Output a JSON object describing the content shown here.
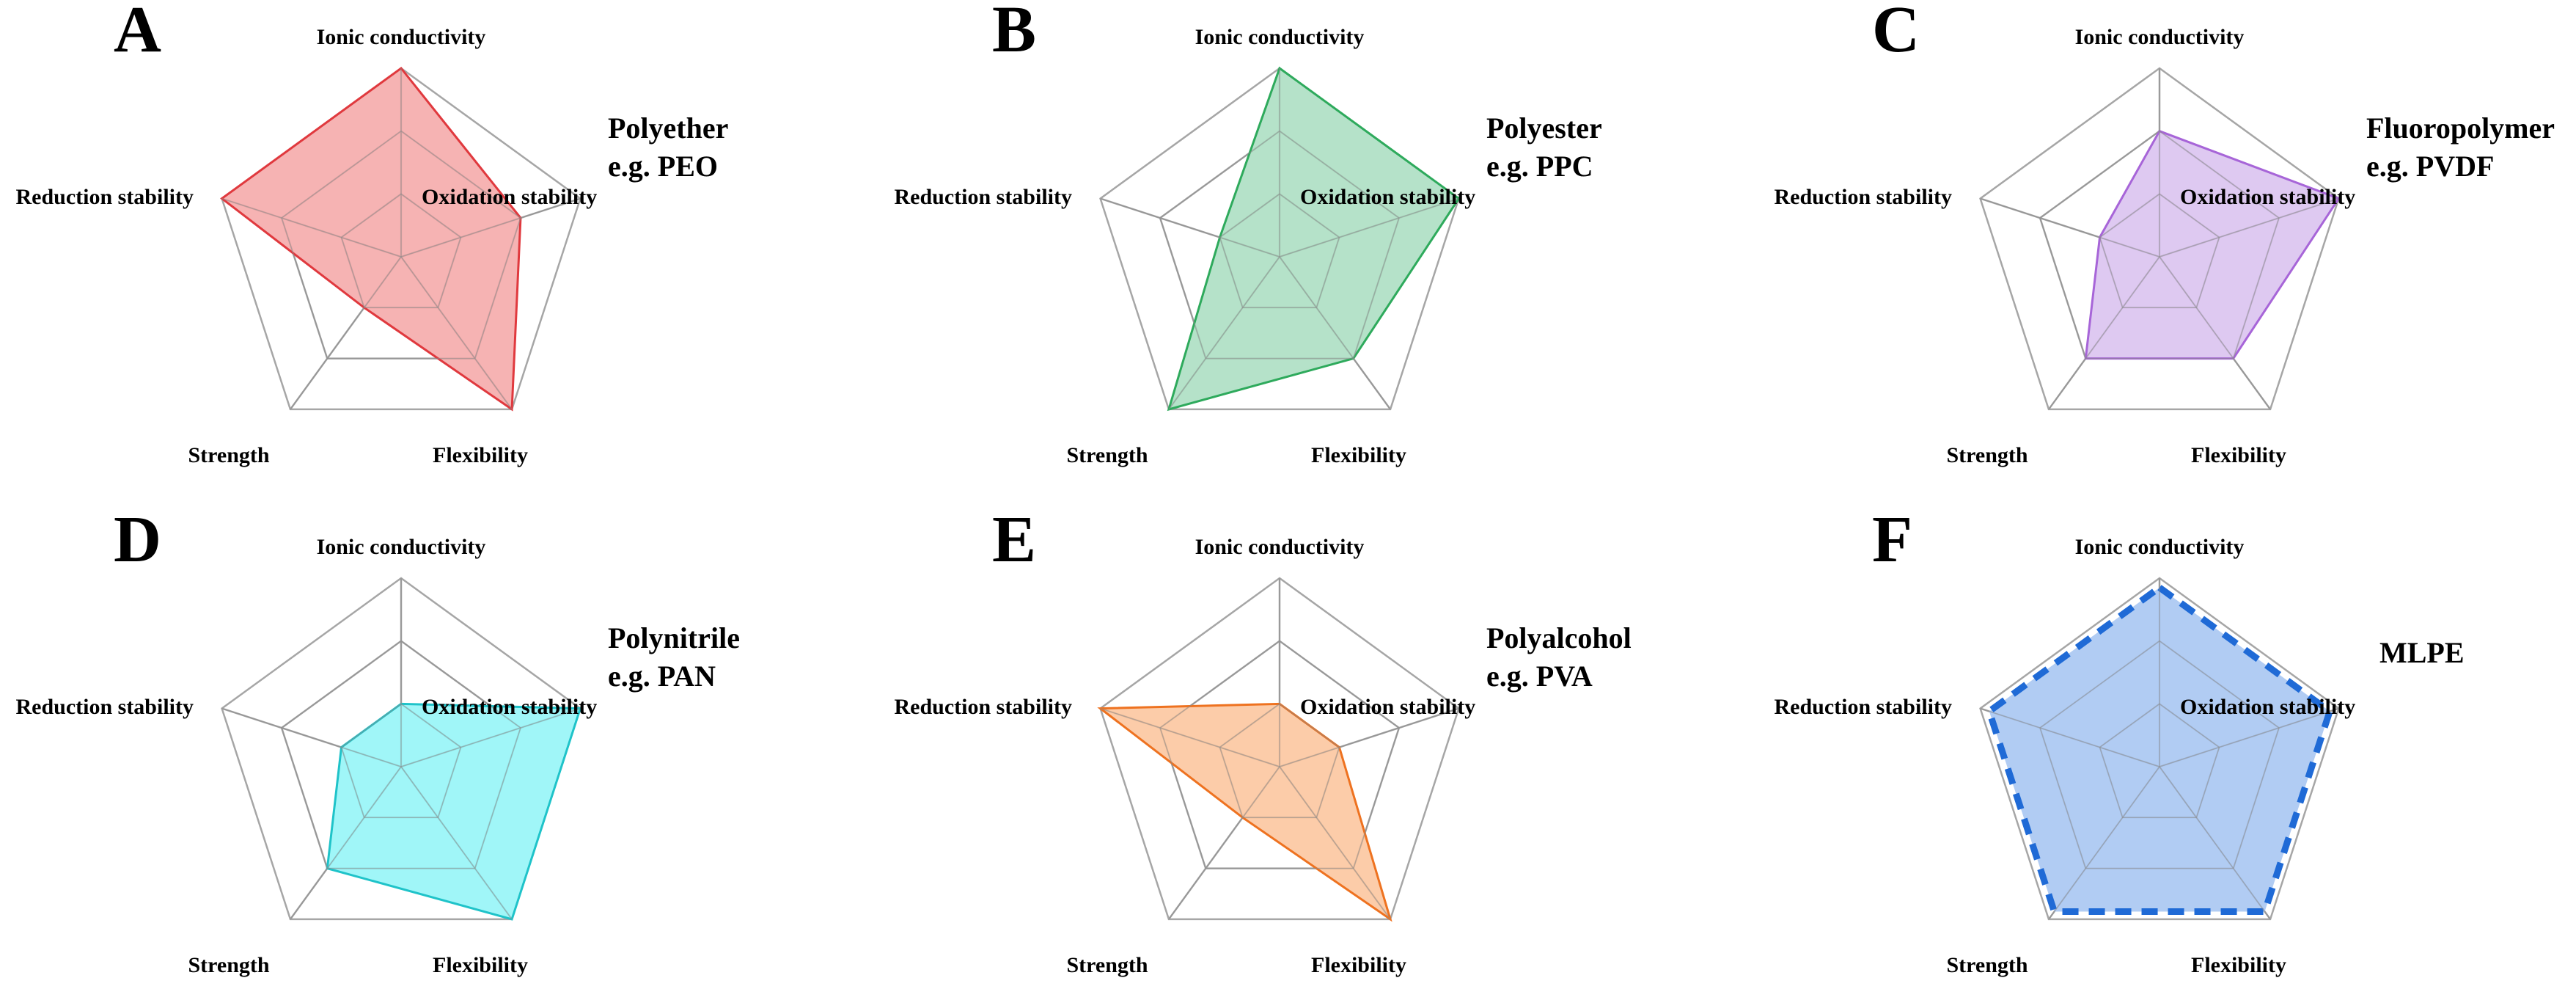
{
  "chart_data": [
    {
      "type": "radar",
      "panel": "A",
      "class_name": "Polyether",
      "example": "e.g. PEO",
      "axes": [
        "Ionic conductivity",
        "Oxidation stability",
        "Flexibility",
        "Strength",
        "Reduction stability"
      ],
      "values": [
        3,
        2,
        3,
        1,
        3
      ],
      "scale_max": 3,
      "levels": 3,
      "color": "#f4a6a6",
      "stroke": "#e0393e",
      "dashed": false
    },
    {
      "type": "radar",
      "panel": "B",
      "class_name": "Polyester",
      "example": "e.g. PPC",
      "axes": [
        "Ionic conductivity",
        "Oxidation stability",
        "Flexibility",
        "Strength",
        "Reduction stability"
      ],
      "values": [
        3,
        3,
        2,
        3,
        1
      ],
      "scale_max": 3,
      "levels": 3,
      "color": "#a8ddc0",
      "stroke": "#2eaa5c",
      "dashed": false
    },
    {
      "type": "radar",
      "panel": "C",
      "class_name": "Fluoropolymer",
      "example": "e.g. PVDF",
      "axes": [
        "Ionic conductivity",
        "Oxidation stability",
        "Flexibility",
        "Strength",
        "Reduction stability"
      ],
      "values": [
        2,
        3,
        2,
        2,
        1
      ],
      "scale_max": 3,
      "levels": 3,
      "color": "#d8c0ee",
      "stroke": "#a765d8",
      "dashed": false
    },
    {
      "type": "radar",
      "panel": "D",
      "class_name": "Polynitrile",
      "example": "e.g. PAN",
      "axes": [
        "Ionic conductivity",
        "Oxidation stability",
        "Flexibility",
        "Strength",
        "Reduction stability"
      ],
      "values": [
        1,
        3,
        3,
        2,
        1
      ],
      "scale_max": 3,
      "levels": 3,
      "color": "#8ff5f7",
      "stroke": "#1fc3c9",
      "dashed": false
    },
    {
      "type": "radar",
      "panel": "E",
      "class_name": "Polyalcohol",
      "example": "e.g. PVA",
      "axes": [
        "Ionic conductivity",
        "Oxidation stability",
        "Flexibility",
        "Strength",
        "Reduction stability"
      ],
      "values": [
        1,
        1,
        3,
        1,
        3
      ],
      "scale_max": 3,
      "levels": 3,
      "color": "#fbc39a",
      "stroke": "#ee7220",
      "dashed": false
    },
    {
      "type": "radar",
      "panel": "F",
      "class_name": "MLPE",
      "example": "",
      "axes": [
        "Ionic conductivity",
        "Oxidation stability",
        "Flexibility",
        "Strength",
        "Reduction stability"
      ],
      "values": [
        2.85,
        2.85,
        2.85,
        2.85,
        2.85
      ],
      "scale_max": 3,
      "levels": 3,
      "color": "#a9c6f2",
      "stroke": "#1f6ad6",
      "dashed": true
    }
  ]
}
